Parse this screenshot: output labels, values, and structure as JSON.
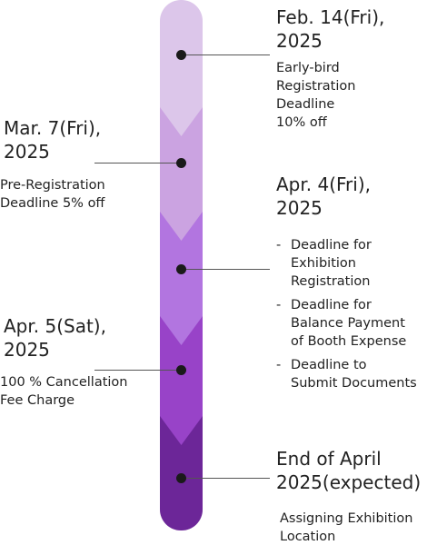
{
  "colors": {
    "segments": [
      "#dcc6ea",
      "#cba3e1",
      "#b275e0",
      "#9843c8",
      "#6c2698"
    ],
    "dot": "#1a1a1a",
    "connector": "#555555",
    "text": "#222222"
  },
  "milestones": [
    {
      "date_lines": [
        "Feb. 14(Fri),",
        "2025"
      ],
      "desc_lines": [
        "Early-bird",
        "Registration",
        "Deadline",
        "10% off"
      ]
    },
    {
      "date_lines": [
        "Mar. 7(Fri),",
        "2025"
      ],
      "desc_lines": [
        "Pre-Registration",
        "Deadline 5% off"
      ]
    },
    {
      "date_lines": [
        "Apr. 4(Fri),",
        "2025"
      ],
      "bullets": [
        {
          "dash": "-",
          "lines": [
            "Deadline for",
            "Exhibition",
            "Registration"
          ]
        },
        {
          "dash": "-",
          "lines": [
            "Deadline for",
            "Balance Payment",
            "of Booth Expense"
          ]
        },
        {
          "dash": "-",
          "lines": [
            "Deadline to",
            "Submit Documents"
          ]
        }
      ]
    },
    {
      "date_lines": [
        "Apr. 5(Sat),",
        "2025"
      ],
      "desc_lines": [
        "100 % Cancellation",
        "Fee Charge"
      ]
    },
    {
      "date_lines": [
        "End of April",
        "2025(expected)"
      ],
      "desc_lines": [
        "Assigning Exhibition",
        "Location"
      ]
    }
  ]
}
